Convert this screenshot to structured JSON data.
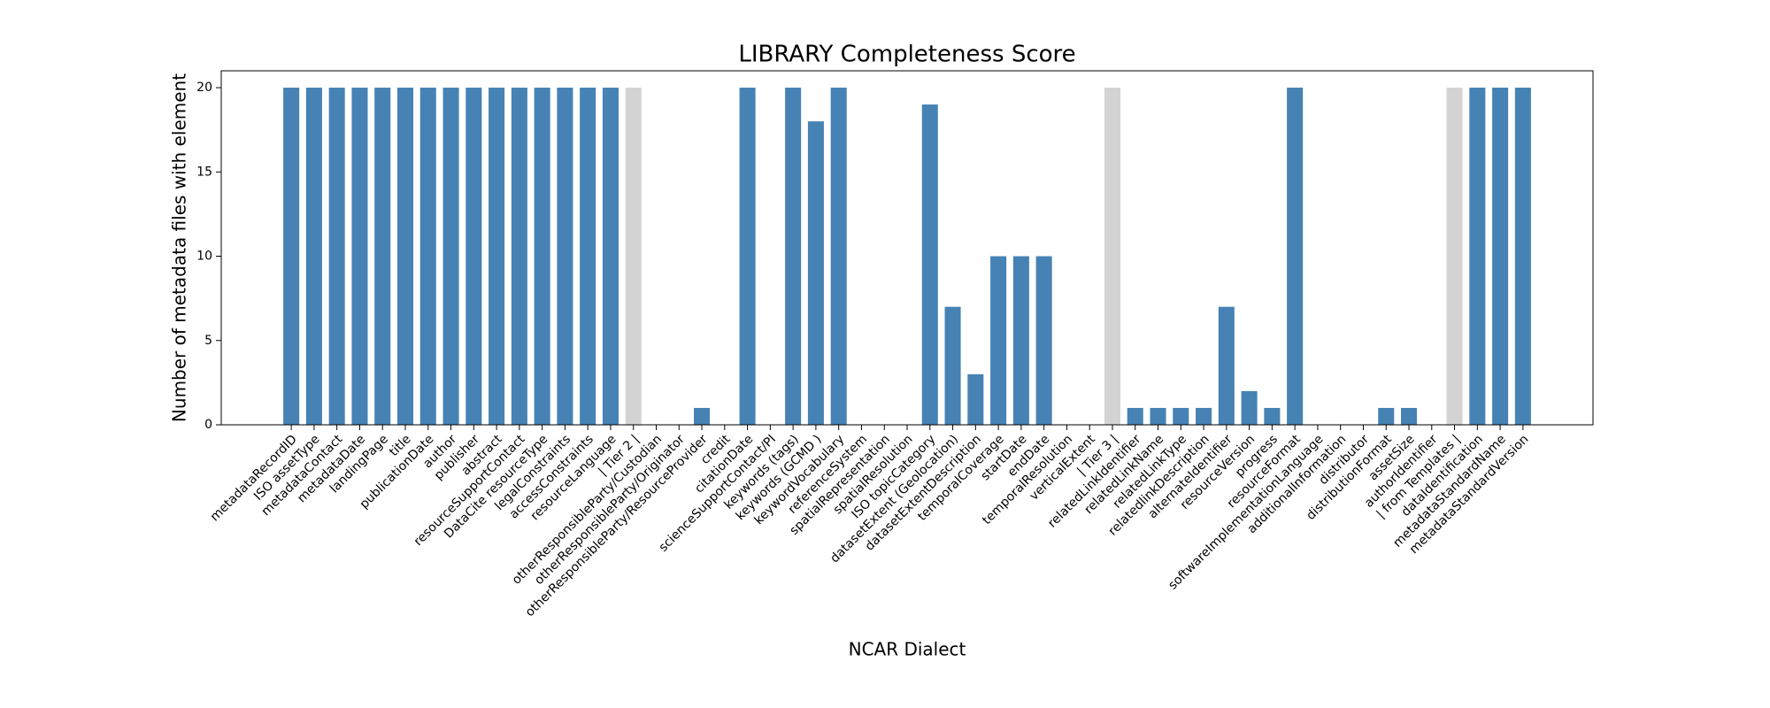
{
  "chart_data": {
    "type": "bar",
    "title": "LIBRARY Completeness Score",
    "xlabel": "NCAR Dialect",
    "ylabel": "Number of metadata files with element",
    "categories": [
      "metadataRecordID",
      "ISO assetType",
      "metadataContact",
      "metadataDate",
      "landingPage",
      "title",
      "publicationDate",
      "author",
      "publisher",
      "abstract",
      "resourceSupportContact",
      "DataCite resourceType",
      "legalConstraints",
      "accessConstraints",
      "resourceLanguage",
      "| Tier 2 |",
      "otherResponsibleParty/Custodian",
      "otherResponsibleParty/Originator",
      "otherResponsibleParty/ResourceProvider",
      "credit",
      "citationDate",
      "scienceSupportContact/PI",
      "keywords (tags)",
      "keywords (GCMD )",
      "keywordVocabulary",
      "referenceSystem",
      "spatialRepresentation",
      "spatialResolution",
      "ISO topicCategory",
      "datasetExtent (Geolocation)",
      "datasetExtentDescription",
      "temporalCoverage",
      "startDate",
      "endDate",
      "temporalResolution",
      "verticalExtent",
      "| Tier 3 |",
      "relatedLinkIdentifier",
      "relatedLinkName",
      "relatedLinkType",
      "relatedlinkDescription",
      "alternateIdentifier",
      "resourceVersion",
      "progress",
      "resourceFormat",
      "softwareImplementationLanguage",
      "additionalInformation",
      "distributor",
      "distributionFormat",
      "assetSize",
      "authorIdentifier",
      "| from Templates |",
      "dataIdentification",
      "metadataStandardName",
      "metadataStandardVersion"
    ],
    "values": [
      20,
      20,
      20,
      20,
      20,
      20,
      20,
      20,
      20,
      20,
      20,
      20,
      20,
      20,
      20,
      20,
      0,
      0,
      1,
      0,
      20,
      0,
      20,
      18,
      20,
      0,
      0,
      0,
      19,
      7,
      3,
      10,
      10,
      10,
      0,
      0,
      20,
      1,
      1,
      1,
      1,
      7,
      2,
      1,
      20,
      0,
      0,
      0,
      1,
      1,
      0,
      20,
      20,
      20,
      20
    ],
    "colors": [
      "#4682b4",
      "#4682b4",
      "#4682b4",
      "#4682b4",
      "#4682b4",
      "#4682b4",
      "#4682b4",
      "#4682b4",
      "#4682b4",
      "#4682b4",
      "#4682b4",
      "#4682b4",
      "#4682b4",
      "#4682b4",
      "#4682b4",
      "#d3d3d3",
      "#4682b4",
      "#4682b4",
      "#4682b4",
      "#4682b4",
      "#4682b4",
      "#4682b4",
      "#4682b4",
      "#4682b4",
      "#4682b4",
      "#4682b4",
      "#4682b4",
      "#4682b4",
      "#4682b4",
      "#4682b4",
      "#4682b4",
      "#4682b4",
      "#4682b4",
      "#4682b4",
      "#4682b4",
      "#4682b4",
      "#d3d3d3",
      "#4682b4",
      "#4682b4",
      "#4682b4",
      "#4682b4",
      "#4682b4",
      "#4682b4",
      "#4682b4",
      "#4682b4",
      "#4682b4",
      "#4682b4",
      "#4682b4",
      "#4682b4",
      "#4682b4",
      "#4682b4",
      "#d3d3d3",
      "#4682b4",
      "#4682b4",
      "#4682b4"
    ],
    "ylim": [
      0,
      21
    ],
    "yticks": [
      0,
      5,
      10,
      15,
      20
    ],
    "grid": false
  }
}
